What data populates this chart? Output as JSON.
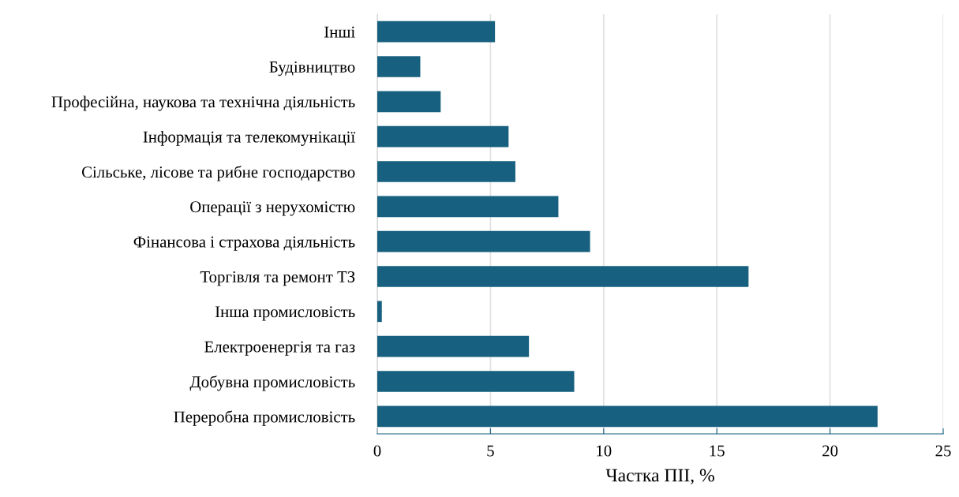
{
  "chart_data": {
    "type": "bar",
    "orientation": "horizontal",
    "xlabel": "Частка ПІІ, %",
    "categories": [
      "Інші",
      "Будівництво",
      "Професійна, наукова та технічна діяльність",
      "Інформація та телекомунікації",
      "Сільське, лісове та рибне господарство",
      "Операції з нерухомістю",
      "Фінансова і страхова діяльність",
      "Торгівля та ремонт ТЗ",
      "Інша промисловість",
      "Електроенергія та газ",
      "Добувна промисловість",
      "Переробна промисловість"
    ],
    "values": [
      5.2,
      1.9,
      2.8,
      5.8,
      6.1,
      8.0,
      9.4,
      16.4,
      0.2,
      6.7,
      8.7,
      22.1
    ],
    "color": "#17607f",
    "xlim": [
      0,
      25
    ],
    "xticks": [
      0,
      5,
      10,
      15,
      20,
      25
    ],
    "grid": "x"
  }
}
